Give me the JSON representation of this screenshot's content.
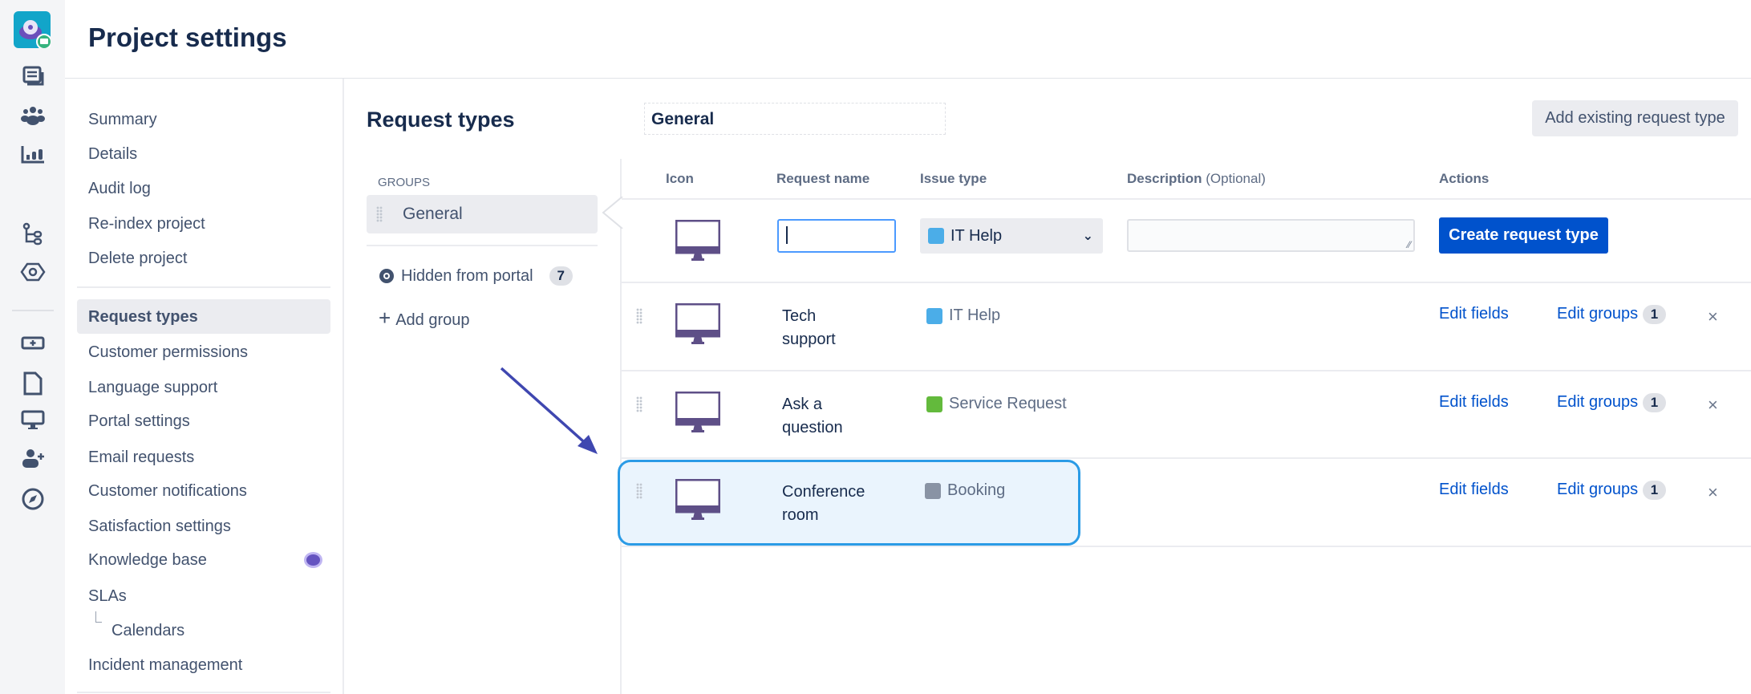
{
  "header": {
    "title": "Project settings"
  },
  "rail": {
    "icons": [
      "project-avatar-icon",
      "queues-icon",
      "customers-icon",
      "reports-icon",
      "issue-tree-icon",
      "hexagon-settings-icon",
      "add-shortcut-icon",
      "page-icon",
      "monitor-icon",
      "invite-user-icon",
      "compass-icon"
    ]
  },
  "nav": {
    "items": [
      {
        "label": "Summary"
      },
      {
        "label": "Details"
      },
      {
        "label": "Audit log"
      },
      {
        "label": "Re-index project"
      },
      {
        "label": "Delete project"
      },
      {
        "label": "Request types",
        "active": true
      },
      {
        "label": "Customer permissions"
      },
      {
        "label": "Language support"
      },
      {
        "label": "Portal settings"
      },
      {
        "label": "Email requests"
      },
      {
        "label": "Customer notifications"
      },
      {
        "label": "Satisfaction settings"
      },
      {
        "label": "Knowledge base"
      },
      {
        "label": "SLAs"
      },
      {
        "label": "Calendars"
      },
      {
        "label": "Incident management"
      }
    ]
  },
  "main": {
    "title": "Request types",
    "group_name_value": "General",
    "add_existing_label": "Add existing request type",
    "groups_label": "GROUPS",
    "groups": [
      {
        "label": "General"
      }
    ],
    "hidden_label": "Hidden from portal",
    "hidden_count": "7",
    "add_group_label": "Add group",
    "columns": {
      "icon": "Icon",
      "name": "Request name",
      "issue_type": "Issue type",
      "description": "Description",
      "description_hint": "(Optional)",
      "actions": "Actions"
    },
    "new_row": {
      "name_value": "",
      "issue_type": "IT Help",
      "description_value": "",
      "create_label": "Create request type"
    },
    "rows": [
      {
        "name_line1": "Tech",
        "name_line2": "support",
        "issue_type": "IT Help",
        "issue_color": "#4bade8",
        "edit_fields": "Edit fields",
        "edit_groups": "Edit groups",
        "groups_count": "1"
      },
      {
        "name_line1": "Ask a",
        "name_line2": "question",
        "issue_type": "Service Request",
        "issue_color": "#63ba3c",
        "edit_fields": "Edit fields",
        "edit_groups": "Edit groups",
        "groups_count": "1"
      },
      {
        "name_line1": "Conference",
        "name_line2": "room",
        "issue_type": "Booking",
        "issue_color": "#8993a4",
        "edit_fields": "Edit fields",
        "edit_groups": "Edit groups",
        "groups_count": "1",
        "highlighted": true
      }
    ],
    "delete_glyph": "×"
  },
  "colors": {
    "primary": "#0052cc",
    "highlight": "#2b9be6",
    "arrow": "#3f47b0",
    "icon_purple": "#5e4f87"
  }
}
